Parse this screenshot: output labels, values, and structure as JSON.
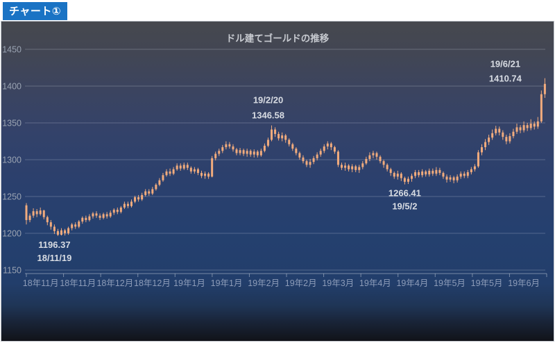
{
  "header": {
    "badge": "チャート①"
  },
  "colors": {
    "badge_bg": "#1a73c4",
    "candle": "#f1ab7d",
    "grid": "rgba(205,213,226,0.28)",
    "axis_line": "rgba(205,213,226,0.5)",
    "annotation": "#d8dce3"
  },
  "chart_data": {
    "type": "candlestick",
    "title": "ドル建てゴールドの推移",
    "ylabel": "",
    "xlabel": "",
    "ylim": [
      1150,
      1450
    ],
    "y_ticks": [
      1150,
      1200,
      1250,
      1300,
      1350,
      1400,
      1450
    ],
    "grid": "horizontal",
    "x_labels": [
      "18年11月",
      "18年11月",
      "18年12月",
      "18年12月",
      "19年1月",
      "19年1月",
      "19年2月",
      "19年2月",
      "19年3月",
      "19年4月",
      "19年4月",
      "19年5月",
      "19年5月",
      "19年6月"
    ],
    "annotations": [
      {
        "lines": [
          "1196.37",
          "18/11/19"
        ],
        "index": 9,
        "price": 1196.37,
        "place": "below",
        "dx": -5
      },
      {
        "lines": [
          "19/2/20",
          "1346.58"
        ],
        "index": 70,
        "price": 1346.58,
        "place": "above",
        "dx": -5
      },
      {
        "lines": [
          "1266.41",
          "19/5/2"
        ],
        "index": 108,
        "price": 1266.41,
        "place": "below",
        "dx": 0
      },
      {
        "lines": [
          "19/6/21",
          "1410.74"
        ],
        "index": 148,
        "price": 1410.74,
        "place": "above-left",
        "dx": -57
      }
    ],
    "ohlc": [
      [
        1238,
        1241,
        1212,
        1218
      ],
      [
        1218,
        1227,
        1215,
        1224
      ],
      [
        1224,
        1234,
        1221,
        1230
      ],
      [
        1230,
        1233,
        1222,
        1226
      ],
      [
        1226,
        1235,
        1224,
        1231
      ],
      [
        1231,
        1232,
        1219,
        1222
      ],
      [
        1222,
        1224,
        1211,
        1215
      ],
      [
        1215,
        1218,
        1205,
        1209
      ],
      [
        1209,
        1212,
        1199,
        1203
      ],
      [
        1203,
        1206,
        1196.37,
        1198
      ],
      [
        1198,
        1207,
        1197,
        1204
      ],
      [
        1204,
        1206,
        1197,
        1200
      ],
      [
        1200,
        1209,
        1198,
        1207
      ],
      [
        1207,
        1214,
        1204,
        1212
      ],
      [
        1212,
        1215,
        1206,
        1209
      ],
      [
        1209,
        1218,
        1207,
        1216
      ],
      [
        1216,
        1223,
        1213,
        1221
      ],
      [
        1221,
        1224,
        1215,
        1218
      ],
      [
        1218,
        1226,
        1216,
        1223
      ],
      [
        1223,
        1229,
        1220,
        1227
      ],
      [
        1227,
        1230,
        1221,
        1224
      ],
      [
        1224,
        1227,
        1218,
        1221
      ],
      [
        1221,
        1228,
        1219,
        1226
      ],
      [
        1226,
        1229,
        1220,
        1223
      ],
      [
        1223,
        1231,
        1221,
        1228
      ],
      [
        1228,
        1234,
        1225,
        1232
      ],
      [
        1232,
        1235,
        1226,
        1229
      ],
      [
        1229,
        1237,
        1227,
        1235
      ],
      [
        1235,
        1243,
        1233,
        1240
      ],
      [
        1240,
        1243,
        1234,
        1237
      ],
      [
        1237,
        1246,
        1235,
        1243
      ],
      [
        1243,
        1251,
        1241,
        1249
      ],
      [
        1249,
        1252,
        1243,
        1246
      ],
      [
        1246,
        1255,
        1244,
        1252
      ],
      [
        1252,
        1260,
        1250,
        1257
      ],
      [
        1257,
        1260,
        1251,
        1254
      ],
      [
        1254,
        1263,
        1252,
        1260
      ],
      [
        1260,
        1268,
        1258,
        1266
      ],
      [
        1266,
        1275,
        1264,
        1272
      ],
      [
        1272,
        1282,
        1270,
        1279
      ],
      [
        1279,
        1287,
        1277,
        1284
      ],
      [
        1284,
        1288,
        1278,
        1281
      ],
      [
        1281,
        1290,
        1279,
        1287
      ],
      [
        1287,
        1295,
        1285,
        1292
      ],
      [
        1292,
        1295,
        1285,
        1288
      ],
      [
        1288,
        1296,
        1286,
        1293
      ],
      [
        1293,
        1296,
        1286,
        1289
      ],
      [
        1289,
        1291,
        1281,
        1284
      ],
      [
        1284,
        1290,
        1281,
        1287
      ],
      [
        1287,
        1289,
        1279,
        1282
      ],
      [
        1282,
        1285,
        1275,
        1278
      ],
      [
        1278,
        1284,
        1274,
        1281
      ],
      [
        1281,
        1283,
        1274,
        1277
      ],
      [
        1277,
        1305,
        1276,
        1302
      ],
      [
        1302,
        1311,
        1299,
        1308
      ],
      [
        1308,
        1315,
        1305,
        1312
      ],
      [
        1312,
        1320,
        1309,
        1317
      ],
      [
        1317,
        1325,
        1314,
        1321
      ],
      [
        1321,
        1324,
        1315,
        1318
      ],
      [
        1318,
        1321,
        1311,
        1314
      ],
      [
        1314,
        1316,
        1306,
        1309
      ],
      [
        1309,
        1316,
        1306,
        1313
      ],
      [
        1313,
        1315,
        1305,
        1308
      ],
      [
        1308,
        1315,
        1304,
        1312
      ],
      [
        1312,
        1314,
        1304,
        1307
      ],
      [
        1307,
        1314,
        1303,
        1311
      ],
      [
        1311,
        1313,
        1303,
        1306
      ],
      [
        1306,
        1315,
        1304,
        1312
      ],
      [
        1312,
        1322,
        1310,
        1319
      ],
      [
        1319,
        1330,
        1317,
        1327
      ],
      [
        1327,
        1346.58,
        1325,
        1341
      ],
      [
        1341,
        1344,
        1331,
        1335
      ],
      [
        1335,
        1338,
        1326,
        1329
      ],
      [
        1329,
        1337,
        1325,
        1333
      ],
      [
        1333,
        1335,
        1323,
        1327
      ],
      [
        1327,
        1329,
        1318,
        1321
      ],
      [
        1321,
        1323,
        1312,
        1315
      ],
      [
        1315,
        1317,
        1306,
        1309
      ],
      [
        1309,
        1311,
        1300,
        1303
      ],
      [
        1303,
        1306,
        1295,
        1298
      ],
      [
        1298,
        1300,
        1290,
        1293
      ],
      [
        1293,
        1301,
        1289,
        1297
      ],
      [
        1297,
        1305,
        1294,
        1302
      ],
      [
        1302,
        1310,
        1299,
        1307
      ],
      [
        1307,
        1315,
        1304,
        1312
      ],
      [
        1312,
        1321,
        1309,
        1318
      ],
      [
        1318,
        1325,
        1314,
        1322
      ],
      [
        1322,
        1324,
        1313,
        1317
      ],
      [
        1317,
        1319,
        1308,
        1311
      ],
      [
        1311,
        1313,
        1290,
        1293
      ],
      [
        1293,
        1296,
        1286,
        1289
      ],
      [
        1289,
        1296,
        1285,
        1292
      ],
      [
        1292,
        1294,
        1284,
        1287
      ],
      [
        1287,
        1294,
        1283,
        1291
      ],
      [
        1291,
        1293,
        1283,
        1286
      ],
      [
        1286,
        1293,
        1282,
        1290
      ],
      [
        1290,
        1298,
        1287,
        1295
      ],
      [
        1295,
        1304,
        1293,
        1301
      ],
      [
        1301,
        1310,
        1298,
        1306
      ],
      [
        1306,
        1312,
        1302,
        1309
      ],
      [
        1309,
        1311,
        1300,
        1304
      ],
      [
        1304,
        1306,
        1295,
        1298
      ],
      [
        1298,
        1300,
        1289,
        1293
      ],
      [
        1293,
        1295,
        1284,
        1287
      ],
      [
        1287,
        1289,
        1278,
        1282
      ],
      [
        1282,
        1284,
        1274,
        1277
      ],
      [
        1277,
        1285,
        1273,
        1281
      ],
      [
        1281,
        1283,
        1271,
        1275
      ],
      [
        1275,
        1277,
        1266.41,
        1270
      ],
      [
        1270,
        1277,
        1267,
        1274
      ],
      [
        1274,
        1281,
        1270,
        1278
      ],
      [
        1278,
        1286,
        1275,
        1283
      ],
      [
        1283,
        1286,
        1276,
        1279
      ],
      [
        1279,
        1287,
        1276,
        1284
      ],
      [
        1284,
        1286,
        1277,
        1280
      ],
      [
        1280,
        1288,
        1277,
        1285
      ],
      [
        1285,
        1288,
        1278,
        1281
      ],
      [
        1281,
        1290,
        1278,
        1286
      ],
      [
        1286,
        1289,
        1279,
        1282
      ],
      [
        1282,
        1284,
        1274,
        1277
      ],
      [
        1277,
        1280,
        1269,
        1273
      ],
      [
        1273,
        1279,
        1270,
        1276
      ],
      [
        1276,
        1278,
        1268,
        1272
      ],
      [
        1272,
        1280,
        1269,
        1277
      ],
      [
        1277,
        1284,
        1274,
        1281
      ],
      [
        1281,
        1284,
        1275,
        1278
      ],
      [
        1278,
        1286,
        1275,
        1283
      ],
      [
        1283,
        1290,
        1280,
        1287
      ],
      [
        1287,
        1294,
        1284,
        1291
      ],
      [
        1291,
        1313,
        1289,
        1310
      ],
      [
        1310,
        1321,
        1306,
        1317
      ],
      [
        1317,
        1328,
        1313,
        1324
      ],
      [
        1324,
        1334,
        1320,
        1330
      ],
      [
        1330,
        1341,
        1327,
        1336
      ],
      [
        1336,
        1346,
        1333,
        1342
      ],
      [
        1342,
        1345,
        1333,
        1337
      ],
      [
        1337,
        1340,
        1327,
        1331
      ],
      [
        1331,
        1334,
        1321,
        1325
      ],
      [
        1325,
        1336,
        1322,
        1332
      ],
      [
        1332,
        1342,
        1329,
        1338
      ],
      [
        1338,
        1349,
        1335,
        1344
      ],
      [
        1344,
        1347,
        1336,
        1340
      ],
      [
        1340,
        1352,
        1337,
        1347
      ],
      [
        1347,
        1350,
        1339,
        1343
      ],
      [
        1343,
        1355,
        1340,
        1349
      ],
      [
        1349,
        1352,
        1341,
        1345
      ],
      [
        1345,
        1358,
        1342,
        1352
      ],
      [
        1352,
        1394,
        1350,
        1389
      ],
      [
        1389,
        1410.74,
        1384,
        1403
      ]
    ]
  }
}
